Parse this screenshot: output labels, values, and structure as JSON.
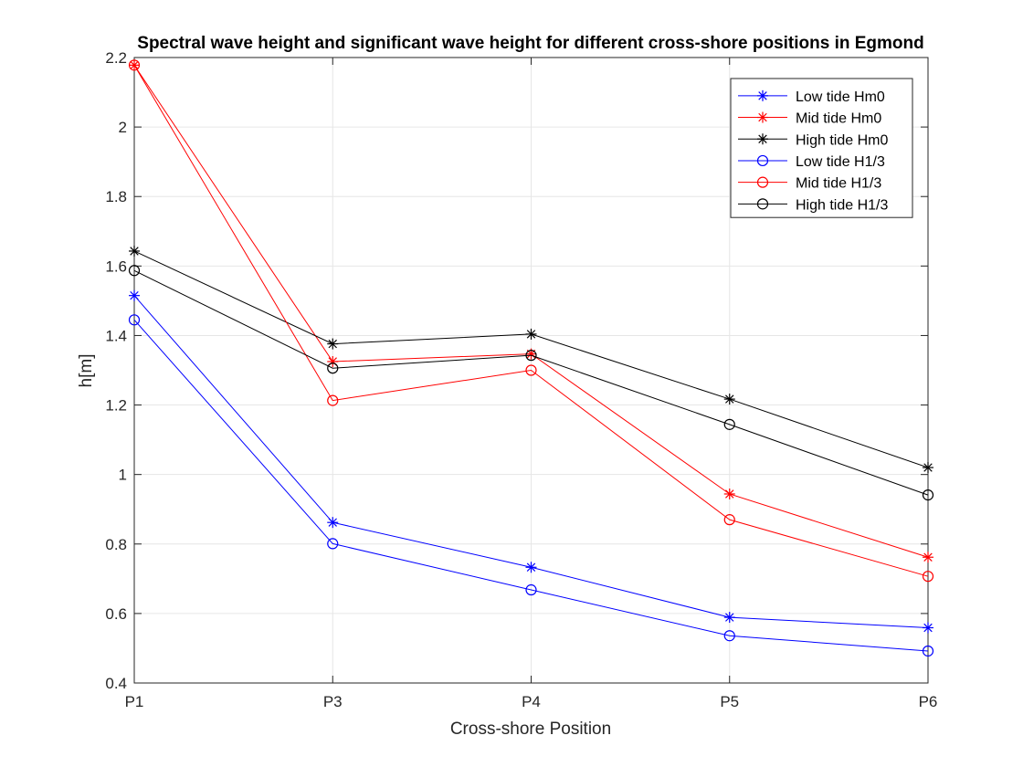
{
  "chart_data": {
    "type": "line",
    "title": "Spectral wave height and significant wave height for different cross-shore positions in Egmond",
    "xlabel": "Cross-shore Position",
    "ylabel": "h[m]",
    "categories": [
      "P1",
      "P3",
      "P4",
      "P5",
      "P6"
    ],
    "ylim": [
      0.4,
      2.2
    ],
    "yticks": [
      0.4,
      0.6,
      0.8,
      1,
      1.2,
      1.4,
      1.6,
      1.8,
      2,
      2.2
    ],
    "ytick_labels": [
      "0.4",
      "0.6",
      "0.8",
      "1",
      "1.2",
      "1.4",
      "1.6",
      "1.8",
      "2",
      "2.2"
    ],
    "grid": true,
    "legend_position": "top-right",
    "series": [
      {
        "name": "Low tide Hm0",
        "color": "#0000ff",
        "marker": "asterisk",
        "values": [
          1.515,
          0.862,
          0.733,
          0.589,
          0.559
        ]
      },
      {
        "name": "Mid tide Hm0",
        "color": "#ff0000",
        "marker": "asterisk",
        "values": [
          2.178,
          1.325,
          1.347,
          0.944,
          0.762
        ]
      },
      {
        "name": "High tide Hm0",
        "color": "#000000",
        "marker": "asterisk",
        "values": [
          1.643,
          1.376,
          1.404,
          1.217,
          1.02
        ]
      },
      {
        "name": "Low tide H1/3",
        "color": "#0000ff",
        "marker": "circle",
        "values": [
          1.445,
          0.801,
          0.668,
          0.536,
          0.492
        ]
      },
      {
        "name": "Mid tide H1/3",
        "color": "#ff0000",
        "marker": "circle",
        "values": [
          2.178,
          1.213,
          1.3,
          0.87,
          0.707
        ]
      },
      {
        "name": "High tide H1/3",
        "color": "#000000",
        "marker": "circle",
        "values": [
          1.587,
          1.306,
          1.343,
          1.144,
          0.941
        ]
      }
    ]
  }
}
